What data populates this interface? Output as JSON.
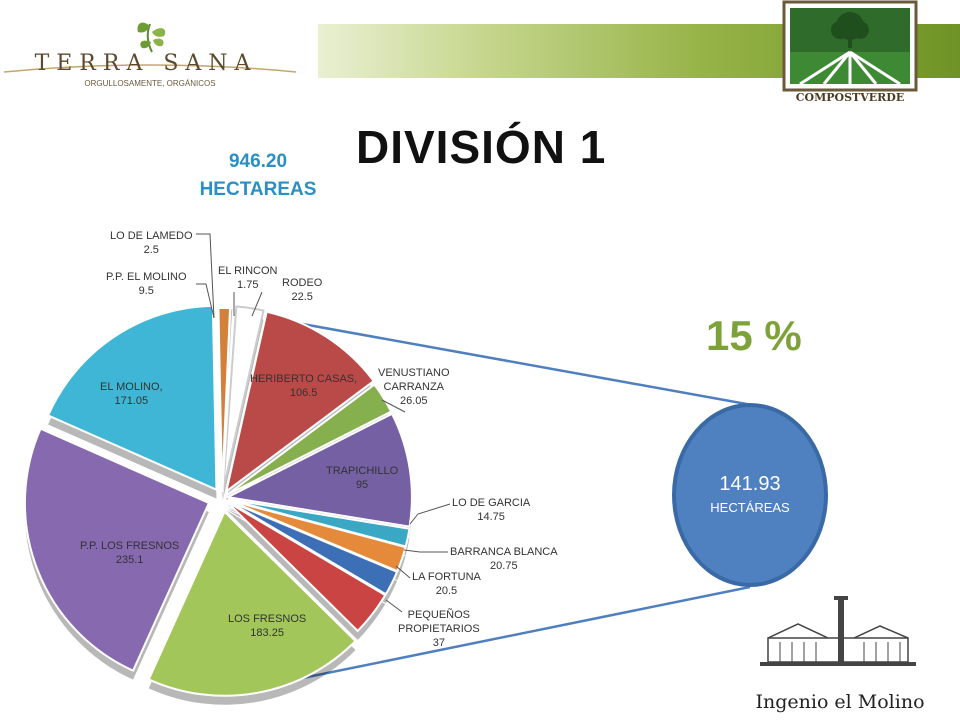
{
  "branding": {
    "left_logo_name": "TERRA SANA",
    "left_logo_tagline": "ORGULLOSAMENTE, ORGÁNICOS",
    "right_logo_name": "COMPOSTVERDE",
    "bottom_logo_name": "Ingenio el Molino"
  },
  "slide": {
    "title": "DIVISIÓN 1",
    "total_value": "946.20",
    "total_unit": "HECTAREAS",
    "highlight_percent": "15 %",
    "highlight_value": "141.93",
    "highlight_unit": "HECTÁREAS"
  },
  "chart_data": {
    "type": "pie",
    "title": "",
    "unit": "HECTAREAS",
    "slices": [
      {
        "label": "EL RINCON",
        "value_text": "1.75",
        "value": 1.75,
        "color": "#2f5f9a"
      },
      {
        "label": "RODEO",
        "value_text": "22.5",
        "value": 22.5,
        "color": "#ffffff"
      },
      {
        "label": "HERIBERTO CASAS,",
        "value_text": "106.5",
        "value": 106.5,
        "color": "#b94a48"
      },
      {
        "label": "VENUSTIANO CARRANZA",
        "value_text": "26.05",
        "value": 26.05,
        "color": "#86b04e"
      },
      {
        "label": "TRAPICHILLO",
        "value_text": "95",
        "value": 95,
        "color": "#7460a2"
      },
      {
        "label": "LO DE GARCIA",
        "value_text": "14.75",
        "value": 14.75,
        "color": "#3aa7c5"
      },
      {
        "label": "BARRANCA BLANCA",
        "value_text": "20.75",
        "value": 20.75,
        "color": "#e58a3a"
      },
      {
        "label": "LA FORTUNA",
        "value_text": "20.5",
        "value": 20.5,
        "color": "#3d6fb6"
      },
      {
        "label": "PEQUEÑOS PROPIETARIOS",
        "value_text": "37",
        "value": 37,
        "color": "#c94442"
      },
      {
        "label": "LOS FRESNOS",
        "value_text": "183.25",
        "value": 183.25,
        "color": "#a3c65a"
      },
      {
        "label": "P.P. LOS FRESNOS",
        "value_text": "235.1",
        "value": 235.1,
        "color": "#8669ae"
      },
      {
        "label": "EL MOLINO,",
        "value_text": "171.05",
        "value": 171.05,
        "color": "#3fb6d6"
      },
      {
        "label": "P.P. EL MOLINO",
        "value_text": "9.5",
        "value": 9.5,
        "color": "#d2803a"
      },
      {
        "label": "LO DE LAMEDO",
        "value_text": "2.5",
        "value": 2.5,
        "color": "#b8bec6"
      }
    ]
  }
}
